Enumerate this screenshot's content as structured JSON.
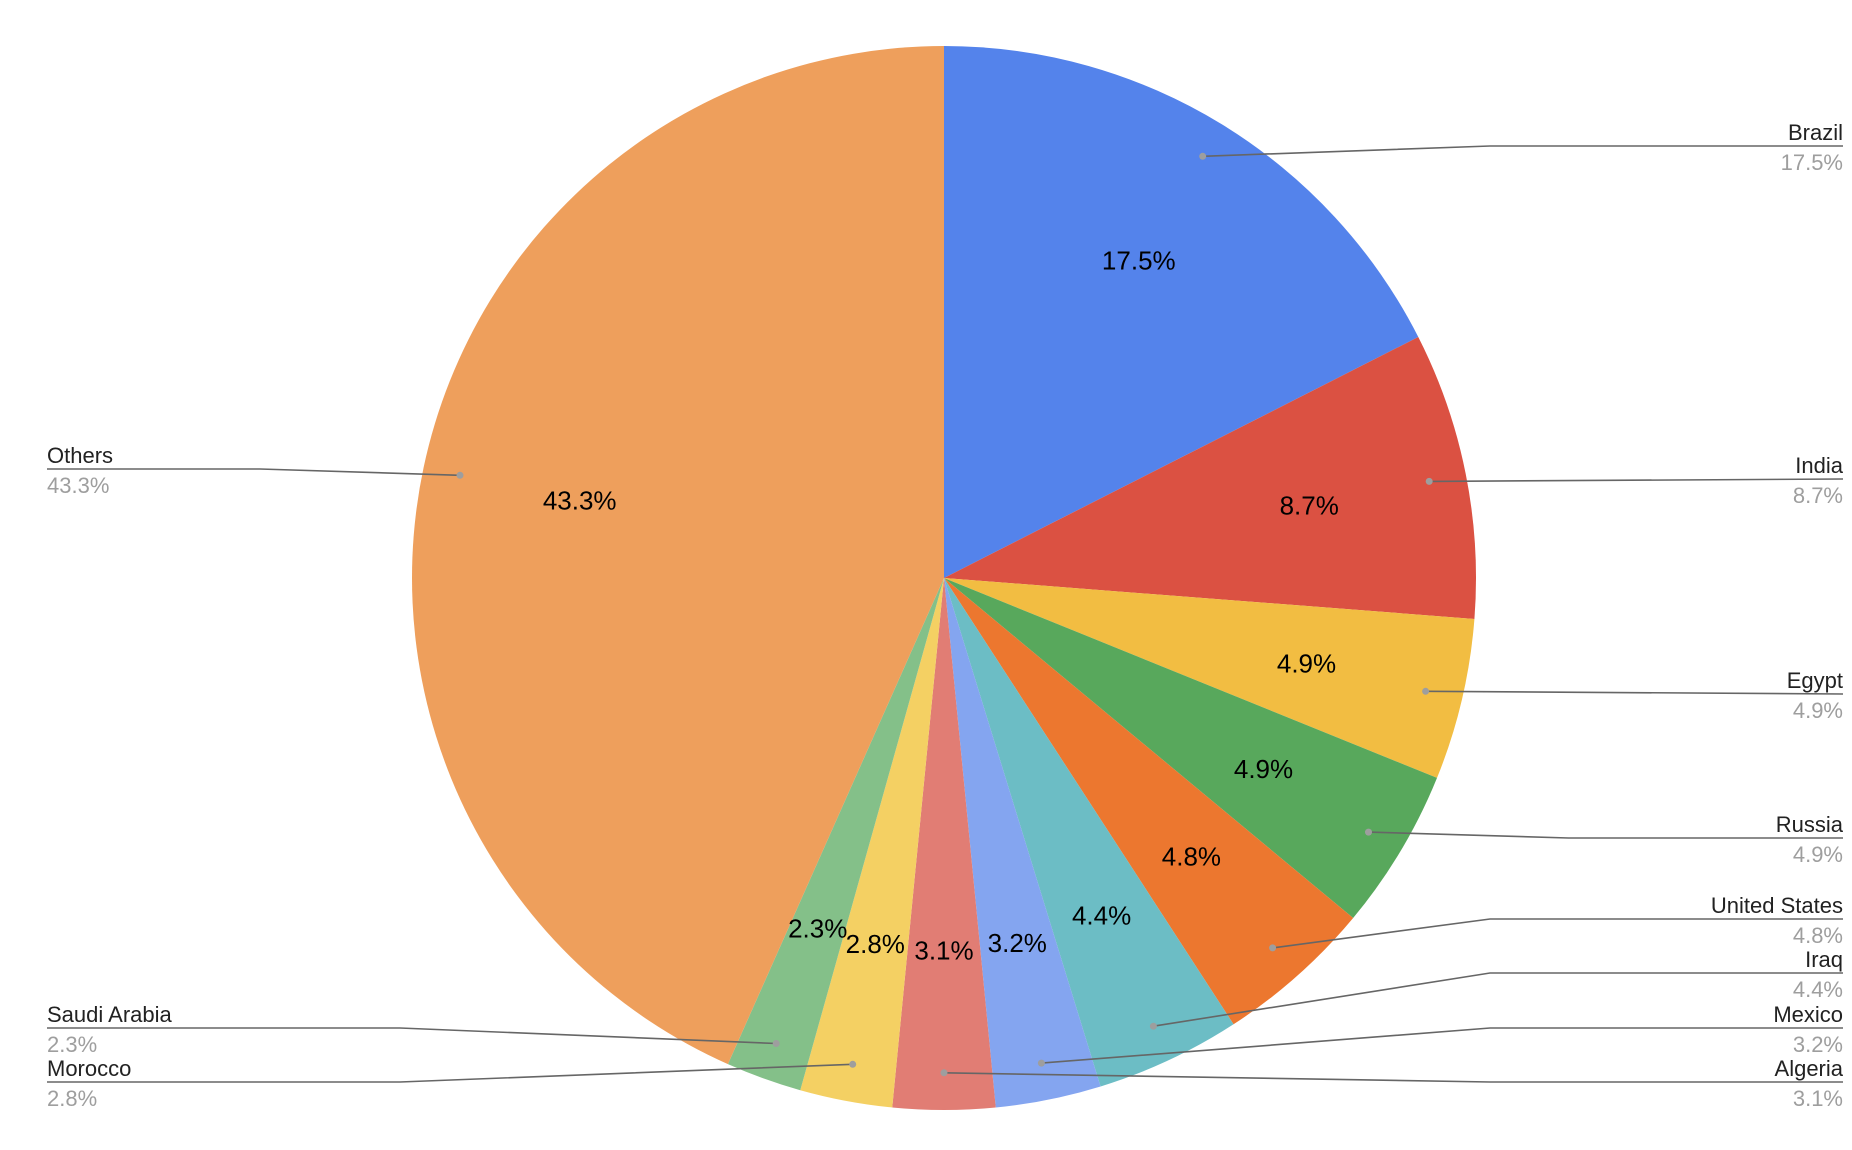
{
  "chart_data": {
    "type": "pie",
    "title": "",
    "start_angle_deg": 0,
    "direction": "clockwise",
    "legend": "none",
    "slices": [
      {
        "label": "Brazil",
        "value": 17.5,
        "display": "17.5%",
        "color": "#5483eb",
        "label_side": "right"
      },
      {
        "label": "India",
        "value": 8.7,
        "display": "8.7%",
        "color": "#db5142",
        "label_side": "right"
      },
      {
        "label": "Egypt",
        "value": 4.9,
        "display": "4.9%",
        "color": "#f2bd42",
        "label_side": "right"
      },
      {
        "label": "Russia",
        "value": 4.9,
        "display": "4.9%",
        "color": "#58a85c",
        "label_side": "right"
      },
      {
        "label": "United States",
        "value": 4.8,
        "display": "4.8%",
        "color": "#ec772f",
        "label_side": "right"
      },
      {
        "label": "Iraq",
        "value": 4.4,
        "display": "4.4%",
        "color": "#6cbdc5",
        "label_side": "right"
      },
      {
        "label": "Mexico",
        "value": 3.2,
        "display": "3.2%",
        "color": "#84a5f0",
        "label_side": "right"
      },
      {
        "label": "Algeria",
        "value": 3.1,
        "display": "3.1%",
        "color": "#e17d74",
        "label_side": "right"
      },
      {
        "label": "Morocco",
        "value": 2.8,
        "display": "2.8%",
        "color": "#f4d063",
        "label_side": "left"
      },
      {
        "label": "Saudi Arabia",
        "value": 2.3,
        "display": "2.3%",
        "color": "#84c089",
        "label_side": "left"
      },
      {
        "label": "Others",
        "value": 43.3,
        "display": "43.3%",
        "color": "#ee9f5c",
        "label_side": "left"
      }
    ]
  }
}
